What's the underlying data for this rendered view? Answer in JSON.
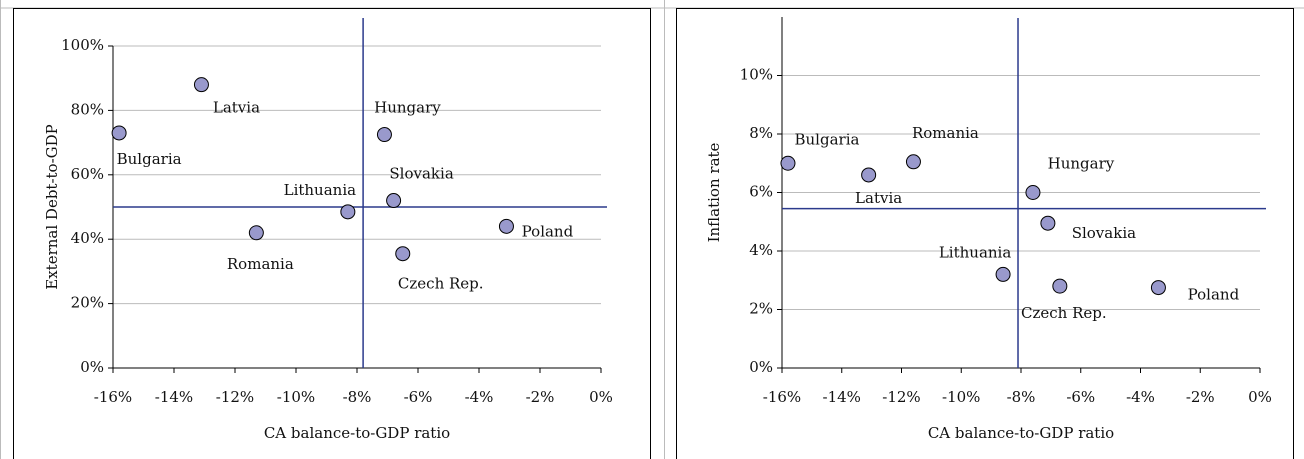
{
  "chart_data": [
    {
      "type": "scatter",
      "x_label": "CA balance-to-GDP ratio",
      "y_label": "External Debt-to-GDP",
      "labels": [
        "Bulgaria",
        "Latvia",
        "Romania",
        "Lithuania",
        "Hungary",
        "Slovakia",
        "Czech Rep.",
        "Poland"
      ],
      "x": [
        -15.8,
        -13.1,
        -11.3,
        -8.3,
        -7.1,
        -6.8,
        -6.5,
        -3.1
      ],
      "values": [
        73,
        88,
        42,
        48.5,
        72.5,
        52,
        35.5,
        44
      ],
      "color": "#9999cc",
      "reference_lines": {
        "x": -7.8,
        "y": 50
      },
      "xlim": [
        -16,
        0
      ],
      "ylim": [
        0,
        100
      ],
      "xticks": [
        {
          "value": -16,
          "label": "-16%"
        },
        {
          "value": -14,
          "label": "-14%"
        },
        {
          "value": -12,
          "label": "-12%"
        },
        {
          "value": -10,
          "label": "-10%"
        },
        {
          "value": -8,
          "label": "-8%"
        },
        {
          "value": -6,
          "label": "-6%"
        },
        {
          "value": -4,
          "label": "-4%"
        },
        {
          "value": -2,
          "label": "-2%"
        },
        {
          "value": 0,
          "label": "0%"
        }
      ],
      "yticks": [
        {
          "value": 0,
          "label": "0%"
        },
        {
          "value": 20,
          "label": "20%"
        },
        {
          "value": 40,
          "label": "40%"
        },
        {
          "value": 60,
          "label": "60%"
        },
        {
          "value": 80,
          "label": "80%"
        },
        {
          "value": 100,
          "label": "100%"
        }
      ],
      "grid": true
    },
    {
      "type": "scatter",
      "x_label": "CA balance-to-GDP ratio",
      "y_label": "Inflation rate",
      "labels": [
        "Bulgaria",
        "Latvia",
        "Romania",
        "Lithuania",
        "Hungary",
        "Slovakia",
        "Czech Rep.",
        "Poland"
      ],
      "x": [
        -15.8,
        -13.1,
        -11.6,
        -8.6,
        -7.6,
        -7.1,
        -6.7,
        -3.4
      ],
      "values": [
        7.0,
        6.6,
        7.05,
        3.2,
        6.0,
        4.95,
        2.8,
        2.75
      ],
      "color": "#9999cc",
      "reference_lines": {
        "x": -8.1,
        "y": 5.45
      },
      "xlim": [
        -16,
        0
      ],
      "ylim": [
        0,
        12
      ],
      "xticks": [
        {
          "value": -16,
          "label": "-16%"
        },
        {
          "value": -14,
          "label": "-14%"
        },
        {
          "value": -12,
          "label": "-12%"
        },
        {
          "value": -10,
          "label": "-10%"
        },
        {
          "value": -8,
          "label": "-8%"
        },
        {
          "value": -6,
          "label": "-6%"
        },
        {
          "value": -4,
          "label": "-4%"
        },
        {
          "value": -2,
          "label": "-2%"
        },
        {
          "value": 0,
          "label": "0%"
        }
      ],
      "yticks": [
        {
          "value": 0,
          "label": "0%"
        },
        {
          "value": 2,
          "label": "2%"
        },
        {
          "value": 4,
          "label": "4%"
        },
        {
          "value": 6,
          "label": "6%"
        },
        {
          "value": 8,
          "label": "8%"
        },
        {
          "value": 10,
          "label": "10%"
        }
      ],
      "grid": true
    }
  ]
}
